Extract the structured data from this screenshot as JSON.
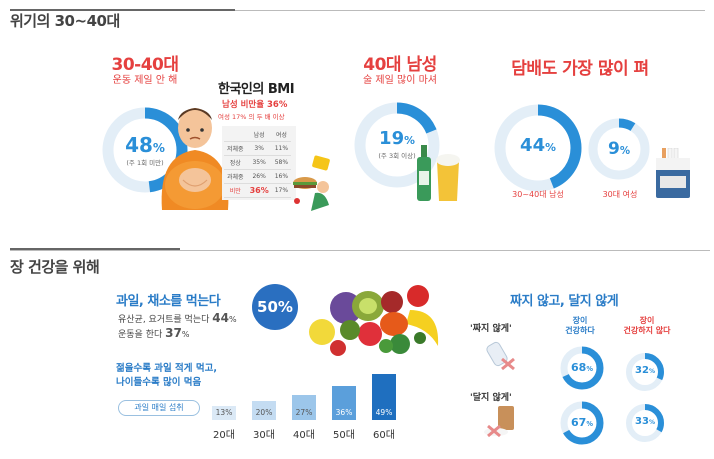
{
  "section1": {
    "title": "위기의 30~40대",
    "group1": {
      "title": "30-40대",
      "subtitle": "운동 제일 안 해",
      "percent": "48",
      "note": "(주 1회 미만)",
      "value": 48
    },
    "bmi": {
      "title": "한국인의 BMI",
      "headline": "남성 비만율 36%",
      "subline": "여성 17% 의 두 배 이상",
      "headers": [
        "",
        "남성",
        "여성"
      ],
      "rows": [
        [
          "저체중",
          "3%",
          "11%"
        ],
        [
          "정상",
          "35%",
          "58%"
        ],
        [
          "과체중",
          "26%",
          "16%"
        ],
        [
          "비만",
          "36%",
          "17%"
        ]
      ]
    },
    "group2": {
      "title": "40대 남성",
      "subtitle": "술 제일 많이 마셔",
      "percent": "19",
      "note": "(주 3회 이상)",
      "value": 19
    },
    "group3": {
      "title": "담배도 가장 많이 펴",
      "rings": [
        {
          "percent": "44",
          "label": "30~40대 남성",
          "value": 44
        },
        {
          "percent": "9",
          "label": "30대 여성",
          "value": 9
        }
      ]
    }
  },
  "section2": {
    "title": "장 건강을 위해",
    "fruit": {
      "title": "과일, 채소를 먹는다",
      "badge": "50%",
      "line1_text": "유산균, 요거트를 먹는다",
      "line1_value": "44",
      "line2_text": "운동을 한다",
      "line2_value": "37",
      "young1": "젊을수록 과일 적게 먹고,",
      "young2": "나이들수록 많이 먹음",
      "pill": "과일 매일 섭취",
      "bars": [
        {
          "age": "20대",
          "label": "13%",
          "value": 13
        },
        {
          "age": "30대",
          "label": "20%",
          "value": 20
        },
        {
          "age": "40대",
          "label": "27%",
          "value": 27
        },
        {
          "age": "50대",
          "label": "36%",
          "value": 36
        },
        {
          "age": "60대",
          "label": "49%",
          "value": 49
        }
      ]
    },
    "salt": {
      "title": "짜지 않고, 달지 않게",
      "col_healthy": "장이\n건강하다",
      "col_unhealthy": "장이\n건강하지 않다",
      "row1_label": "'짜지 않게'",
      "row2_label": "'달지 않게'",
      "row1": [
        {
          "percent": "68",
          "value": 68
        },
        {
          "percent": "32",
          "value": 32
        }
      ],
      "row2": [
        {
          "percent": "67",
          "value": 67
        },
        {
          "percent": "33",
          "value": 33
        }
      ]
    }
  }
}
